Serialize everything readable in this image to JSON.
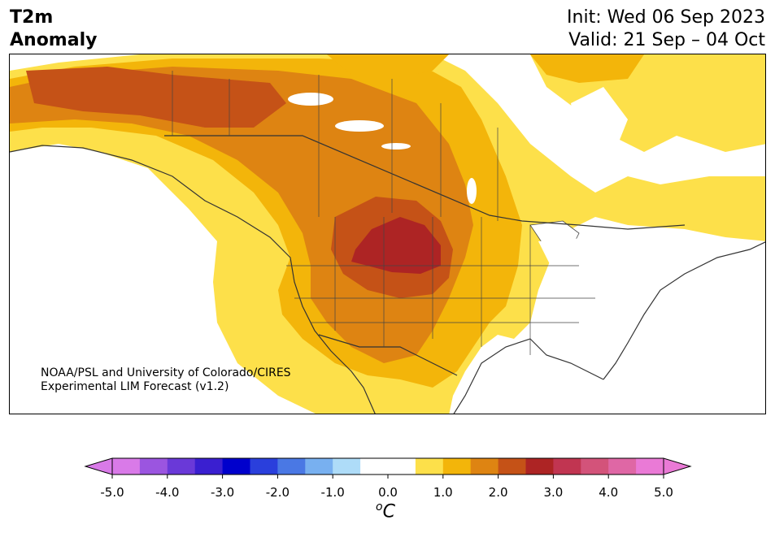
{
  "header": {
    "title_line1": "T2m",
    "title_line2": "Anomaly",
    "init": "Init: Wed 06 Sep 2023",
    "valid": "Valid: 21 Sep – 04 Oct"
  },
  "credit": {
    "line1": "NOAA/PSL and University of Colorado/CIRES",
    "line2": "Experimental LIM Forecast (v1.2)"
  },
  "colorbar": {
    "unit_sup": "o",
    "unit": "C",
    "ticks": [
      "-5.0",
      "-4.0",
      "-3.0",
      "-2.0",
      "-1.0",
      "0.0",
      "1.0",
      "2.0",
      "3.0",
      "4.0",
      "5.0"
    ],
    "colors": [
      "#d97ae8",
      "#9b55e0",
      "#6a39d8",
      "#3a1fd0",
      "#0000cc",
      "#2a3fdc",
      "#4a78e4",
      "#78b0f0",
      "#aedcf8",
      "#ffffff",
      "#ffffff",
      "#fde04a",
      "#f3b50a",
      "#de8412",
      "#c55217",
      "#ad2424",
      "#c13551",
      "#d3537a",
      "#df67a5",
      "#ea7ad6"
    ]
  },
  "map": {
    "anomaly_colors": {
      "plus_0_5": "#fde04a",
      "plus_1_0": "#f3b50a",
      "plus_1_5": "#de8412",
      "plus_2_0": "#c55217",
      "plus_2_5": "#ad2424"
    }
  }
}
